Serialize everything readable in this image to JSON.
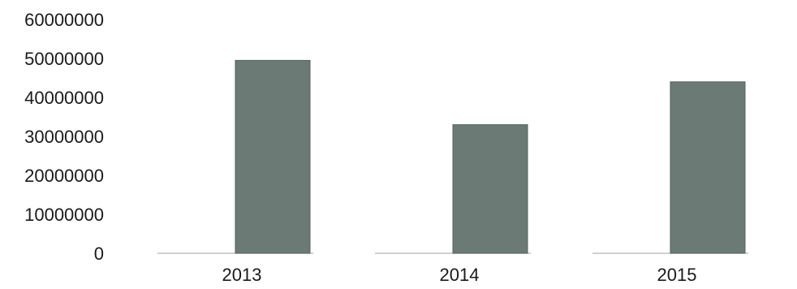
{
  "chart_data": {
    "type": "bar",
    "title": "",
    "xlabel": "",
    "ylabel": "",
    "categories": [
      "2013",
      "2014",
      "2015"
    ],
    "values": [
      49500000,
      33000000,
      44000000
    ],
    "ylim": [
      0,
      60000000
    ],
    "yticks": [
      0,
      10000000,
      20000000,
      30000000,
      40000000,
      50000000,
      60000000
    ],
    "ytick_labels": [
      "0",
      "10000000",
      "20000000",
      "30000000",
      "40000000",
      "50000000",
      "60000000"
    ],
    "grid": false,
    "legend": "none",
    "colors": {
      "bar": "#6b7a74",
      "bar_edge": "#56625d",
      "baseline": "#b5b5b5",
      "text": "#1a1a1a"
    }
  }
}
